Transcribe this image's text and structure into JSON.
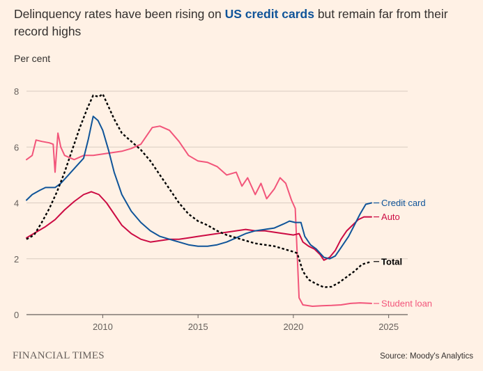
{
  "header": {
    "title_pre": "Delinquency rates have been rising on ",
    "title_highlight": "US credit cards",
    "title_post": " but remain far from their record highs"
  },
  "footer": {
    "brand": "FINANCIAL TIMES",
    "source": "Source: Moody's Analytics"
  },
  "colors": {
    "background": "#FFF1E5",
    "credit_card": "#0F5499",
    "auto": "#CC0B43",
    "total": "#000000",
    "student_loan": "#F2557A",
    "grid": "#D9CCC1"
  },
  "chart_data": {
    "type": "line",
    "ylabel": "Per cent",
    "xlim": [
      2006,
      2026
    ],
    "ylim": [
      0,
      8
    ],
    "x_ticks": [
      2010,
      2015,
      2020,
      2025
    ],
    "y_ticks": [
      0,
      2,
      4,
      6,
      8
    ],
    "grid": "horizontal",
    "series": [
      {
        "name": "Credit card",
        "color": "#0F5499",
        "dashed": false,
        "label_value": 4.0,
        "points": [
          [
            2006.0,
            4.1
          ],
          [
            2006.3,
            4.3
          ],
          [
            2006.7,
            4.45
          ],
          [
            2007.0,
            4.55
          ],
          [
            2007.5,
            4.55
          ],
          [
            2007.8,
            4.7
          ],
          [
            2008.2,
            5.0
          ],
          [
            2008.6,
            5.3
          ],
          [
            2009.0,
            5.6
          ],
          [
            2009.25,
            6.3
          ],
          [
            2009.5,
            7.1
          ],
          [
            2009.75,
            6.95
          ],
          [
            2010.0,
            6.6
          ],
          [
            2010.3,
            5.9
          ],
          [
            2010.6,
            5.1
          ],
          [
            2011.0,
            4.3
          ],
          [
            2011.5,
            3.7
          ],
          [
            2012.0,
            3.3
          ],
          [
            2012.5,
            3.0
          ],
          [
            2013.0,
            2.8
          ],
          [
            2013.5,
            2.7
          ],
          [
            2014.0,
            2.6
          ],
          [
            2014.5,
            2.5
          ],
          [
            2015.0,
            2.45
          ],
          [
            2015.5,
            2.45
          ],
          [
            2016.0,
            2.5
          ],
          [
            2016.5,
            2.6
          ],
          [
            2017.0,
            2.75
          ],
          [
            2017.5,
            2.9
          ],
          [
            2018.0,
            3.0
          ],
          [
            2018.5,
            3.05
          ],
          [
            2019.0,
            3.1
          ],
          [
            2019.5,
            3.25
          ],
          [
            2019.8,
            3.35
          ],
          [
            2020.1,
            3.3
          ],
          [
            2020.4,
            3.3
          ],
          [
            2020.6,
            2.8
          ],
          [
            2020.9,
            2.5
          ],
          [
            2021.2,
            2.35
          ],
          [
            2021.4,
            2.2
          ],
          [
            2021.6,
            2.05
          ],
          [
            2021.9,
            2.0
          ],
          [
            2022.2,
            2.1
          ],
          [
            2022.5,
            2.4
          ],
          [
            2022.9,
            2.8
          ],
          [
            2023.2,
            3.2
          ],
          [
            2023.5,
            3.6
          ],
          [
            2023.8,
            3.95
          ],
          [
            2024.1,
            4.0
          ]
        ]
      },
      {
        "name": "Auto",
        "color": "#CC0B43",
        "dashed": false,
        "label_value": 3.5,
        "points": [
          [
            2006.0,
            2.75
          ],
          [
            2006.5,
            2.95
          ],
          [
            2007.0,
            3.15
          ],
          [
            2007.5,
            3.4
          ],
          [
            2008.0,
            3.75
          ],
          [
            2008.5,
            4.05
          ],
          [
            2009.0,
            4.3
          ],
          [
            2009.4,
            4.4
          ],
          [
            2009.8,
            4.3
          ],
          [
            2010.2,
            4.0
          ],
          [
            2010.6,
            3.6
          ],
          [
            2011.0,
            3.2
          ],
          [
            2011.5,
            2.9
          ],
          [
            2012.0,
            2.7
          ],
          [
            2012.5,
            2.6
          ],
          [
            2013.0,
            2.65
          ],
          [
            2013.5,
            2.7
          ],
          [
            2014.0,
            2.7
          ],
          [
            2014.5,
            2.75
          ],
          [
            2015.0,
            2.8
          ],
          [
            2015.5,
            2.85
          ],
          [
            2016.0,
            2.9
          ],
          [
            2016.5,
            2.95
          ],
          [
            2017.0,
            3.0
          ],
          [
            2017.5,
            3.05
          ],
          [
            2018.0,
            3.0
          ],
          [
            2018.5,
            3.0
          ],
          [
            2019.0,
            2.95
          ],
          [
            2019.5,
            2.9
          ],
          [
            2020.0,
            2.85
          ],
          [
            2020.3,
            2.9
          ],
          [
            2020.5,
            2.6
          ],
          [
            2020.8,
            2.45
          ],
          [
            2021.1,
            2.35
          ],
          [
            2021.4,
            2.15
          ],
          [
            2021.6,
            1.95
          ],
          [
            2021.9,
            2.05
          ],
          [
            2022.2,
            2.3
          ],
          [
            2022.5,
            2.7
          ],
          [
            2022.8,
            3.0
          ],
          [
            2023.1,
            3.2
          ],
          [
            2023.4,
            3.4
          ],
          [
            2023.7,
            3.5
          ],
          [
            2024.1,
            3.5
          ]
        ]
      },
      {
        "name": "Total",
        "color": "#000000",
        "dashed": true,
        "label_value": 1.9,
        "points": [
          [
            2006.0,
            2.7
          ],
          [
            2006.4,
            2.85
          ],
          [
            2006.8,
            3.3
          ],
          [
            2007.2,
            3.8
          ],
          [
            2007.6,
            4.4
          ],
          [
            2008.0,
            5.1
          ],
          [
            2008.4,
            5.9
          ],
          [
            2008.8,
            6.7
          ],
          [
            2009.2,
            7.4
          ],
          [
            2009.5,
            7.85
          ],
          [
            2009.8,
            7.8
          ],
          [
            2010.0,
            7.9
          ],
          [
            2010.2,
            7.6
          ],
          [
            2010.6,
            7.0
          ],
          [
            2011.0,
            6.5
          ],
          [
            2011.5,
            6.2
          ],
          [
            2012.0,
            5.9
          ],
          [
            2012.5,
            5.5
          ],
          [
            2013.0,
            5.0
          ],
          [
            2013.5,
            4.5
          ],
          [
            2014.0,
            4.0
          ],
          [
            2014.5,
            3.6
          ],
          [
            2015.0,
            3.35
          ],
          [
            2015.5,
            3.2
          ],
          [
            2016.0,
            3.0
          ],
          [
            2016.5,
            2.85
          ],
          [
            2017.0,
            2.75
          ],
          [
            2017.5,
            2.65
          ],
          [
            2018.0,
            2.55
          ],
          [
            2018.5,
            2.5
          ],
          [
            2019.0,
            2.45
          ],
          [
            2019.5,
            2.35
          ],
          [
            2020.0,
            2.25
          ],
          [
            2020.2,
            2.2
          ],
          [
            2020.5,
            1.55
          ],
          [
            2020.8,
            1.25
          ],
          [
            2021.2,
            1.1
          ],
          [
            2021.6,
            0.98
          ],
          [
            2022.0,
            1.0
          ],
          [
            2022.4,
            1.15
          ],
          [
            2022.8,
            1.35
          ],
          [
            2023.2,
            1.55
          ],
          [
            2023.6,
            1.8
          ],
          [
            2024.1,
            1.9
          ]
        ]
      },
      {
        "name": "Student loan",
        "color": "#F2557A",
        "dashed": false,
        "label_value": 0.4,
        "points": [
          [
            2006.0,
            5.55
          ],
          [
            2006.3,
            5.7
          ],
          [
            2006.5,
            6.25
          ],
          [
            2006.8,
            6.2
          ],
          [
            2007.2,
            6.15
          ],
          [
            2007.4,
            6.1
          ],
          [
            2007.5,
            5.1
          ],
          [
            2007.65,
            6.5
          ],
          [
            2007.8,
            6.0
          ],
          [
            2008.0,
            5.7
          ],
          [
            2008.5,
            5.55
          ],
          [
            2009.0,
            5.7
          ],
          [
            2009.5,
            5.7
          ],
          [
            2010.0,
            5.75
          ],
          [
            2010.5,
            5.8
          ],
          [
            2011.0,
            5.85
          ],
          [
            2011.5,
            5.95
          ],
          [
            2012.0,
            6.1
          ],
          [
            2012.3,
            6.4
          ],
          [
            2012.6,
            6.7
          ],
          [
            2013.0,
            6.75
          ],
          [
            2013.5,
            6.6
          ],
          [
            2014.0,
            6.2
          ],
          [
            2014.5,
            5.7
          ],
          [
            2015.0,
            5.5
          ],
          [
            2015.5,
            5.45
          ],
          [
            2016.0,
            5.3
          ],
          [
            2016.5,
            5.0
          ],
          [
            2017.0,
            5.1
          ],
          [
            2017.3,
            4.6
          ],
          [
            2017.6,
            4.9
          ],
          [
            2018.0,
            4.3
          ],
          [
            2018.3,
            4.7
          ],
          [
            2018.6,
            4.15
          ],
          [
            2019.0,
            4.5
          ],
          [
            2019.3,
            4.9
          ],
          [
            2019.6,
            4.7
          ],
          [
            2019.9,
            4.1
          ],
          [
            2020.1,
            3.8
          ],
          [
            2020.3,
            0.6
          ],
          [
            2020.5,
            0.35
          ],
          [
            2021.0,
            0.3
          ],
          [
            2021.5,
            0.32
          ],
          [
            2022.0,
            0.33
          ],
          [
            2022.5,
            0.35
          ],
          [
            2023.0,
            0.4
          ],
          [
            2023.5,
            0.42
          ],
          [
            2024.1,
            0.4
          ]
        ]
      }
    ]
  }
}
